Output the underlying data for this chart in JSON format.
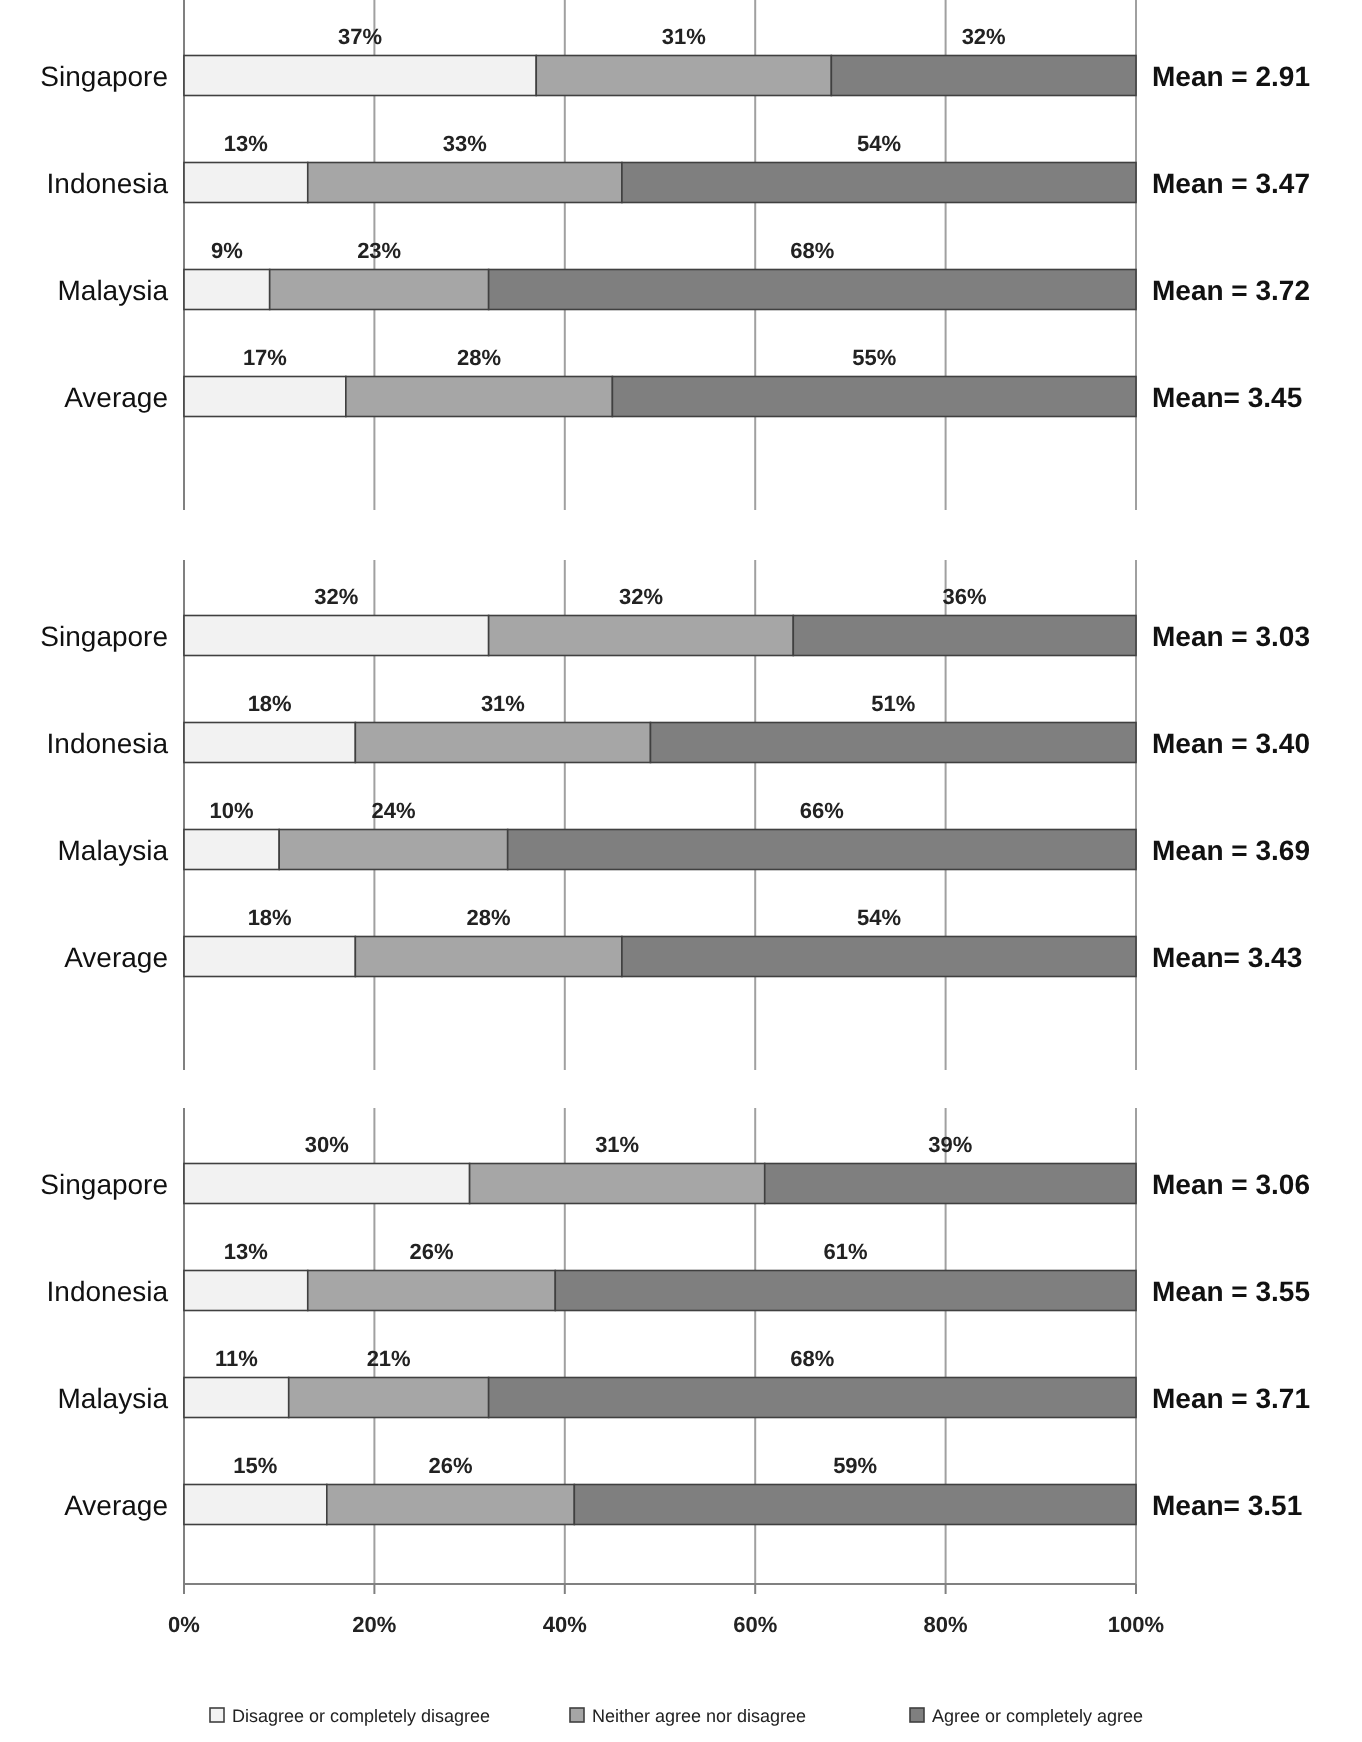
{
  "chart_data": [
    {
      "type": "bar",
      "orientation": "horizontal",
      "stacked": true,
      "categories": [
        "Singapore",
        "Indonesia",
        "Malaysia",
        "Average"
      ],
      "series": [
        {
          "color": "#f2f2f2",
          "values": [
            37,
            13,
            9,
            17
          ]
        },
        {
          "color": "#a6a6a6",
          "values": [
            31,
            33,
            23,
            28
          ]
        },
        {
          "color": "#7f7f7f",
          "values": [
            32,
            54,
            68,
            55
          ]
        }
      ],
      "value_labels": [
        [
          "37%",
          "13%",
          "9%",
          "17%"
        ],
        [
          "31%",
          "33%",
          "23%",
          "28%"
        ],
        [
          "32%",
          "54%",
          "68%",
          "55%"
        ]
      ],
      "xlim": [
        0,
        100
      ],
      "xticks": [
        {
          "value": 0,
          "label": null
        },
        {
          "value": 20,
          "label": null
        },
        {
          "value": 40,
          "label": null
        },
        {
          "value": 60,
          "label": null
        },
        {
          "value": 80,
          "label": null
        },
        {
          "value": 100,
          "label": null
        }
      ],
      "grid": "x",
      "tick_labels": "y",
      "legend": false,
      "annotations": [
        "Mean = 2.91",
        "Mean = 3.47",
        "Mean = 3.72",
        "Mean= 3.45"
      ]
    },
    {
      "type": "bar",
      "orientation": "horizontal",
      "stacked": true,
      "categories": [
        "Singapore",
        "Indonesia",
        "Malaysia",
        "Average"
      ],
      "series": [
        {
          "color": "#f2f2f2",
          "values": [
            32,
            18,
            10,
            18
          ]
        },
        {
          "color": "#a6a6a6",
          "values": [
            32,
            31,
            24,
            28
          ]
        },
        {
          "color": "#7f7f7f",
          "values": [
            36,
            51,
            66,
            54
          ]
        }
      ],
      "value_labels": [
        [
          "32%",
          "18%",
          "10%",
          "18%"
        ],
        [
          "32%",
          "31%",
          "24%",
          "28%"
        ],
        [
          "36%",
          "51%",
          "66%",
          "54%"
        ]
      ],
      "xlim": [
        0,
        100
      ],
      "xticks": [
        {
          "value": 0,
          "label": null
        },
        {
          "value": 20,
          "label": null
        },
        {
          "value": 40,
          "label": null
        },
        {
          "value": 60,
          "label": null
        },
        {
          "value": 80,
          "label": null
        },
        {
          "value": 100,
          "label": null
        }
      ],
      "grid": "x",
      "tick_labels": "y",
      "legend": false,
      "annotations": [
        "Mean = 3.03",
        "Mean = 3.40",
        "Mean = 3.69",
        "Mean= 3.43"
      ]
    },
    {
      "type": "bar",
      "orientation": "horizontal",
      "stacked": true,
      "categories": [
        "Singapore",
        "Indonesia",
        "Malaysia",
        "Average"
      ],
      "series": [
        {
          "name": "Disagree or completely disagree",
          "color": "#f2f2f2",
          "values": [
            30,
            13,
            11,
            15
          ]
        },
        {
          "name": "Neither agree nor disagree",
          "color": "#a6a6a6",
          "values": [
            31,
            26,
            21,
            26
          ]
        },
        {
          "name": "Agree or completely agree",
          "color": "#7f7f7f",
          "values": [
            39,
            61,
            68,
            59
          ]
        }
      ],
      "value_labels": [
        [
          "30%",
          "13%",
          "11%",
          "15%"
        ],
        [
          "31%",
          "26%",
          "21%",
          "26%"
        ],
        [
          "39%",
          "61%",
          "68%",
          "59%"
        ]
      ],
      "xlim": [
        0,
        100
      ],
      "xticks": [
        {
          "value": 0,
          "label": "0%"
        },
        {
          "value": 20,
          "label": "20%"
        },
        {
          "value": 40,
          "label": "40%"
        },
        {
          "value": 60,
          "label": "60%"
        },
        {
          "value": 80,
          "label": "80%"
        },
        {
          "value": 100,
          "label": "100%"
        }
      ],
      "grid": "x",
      "legend": "bottom",
      "annotations": [
        "Mean = 3.06",
        "Mean = 3.55",
        "Mean = 3.71",
        "Mean= 3.51"
      ]
    }
  ]
}
